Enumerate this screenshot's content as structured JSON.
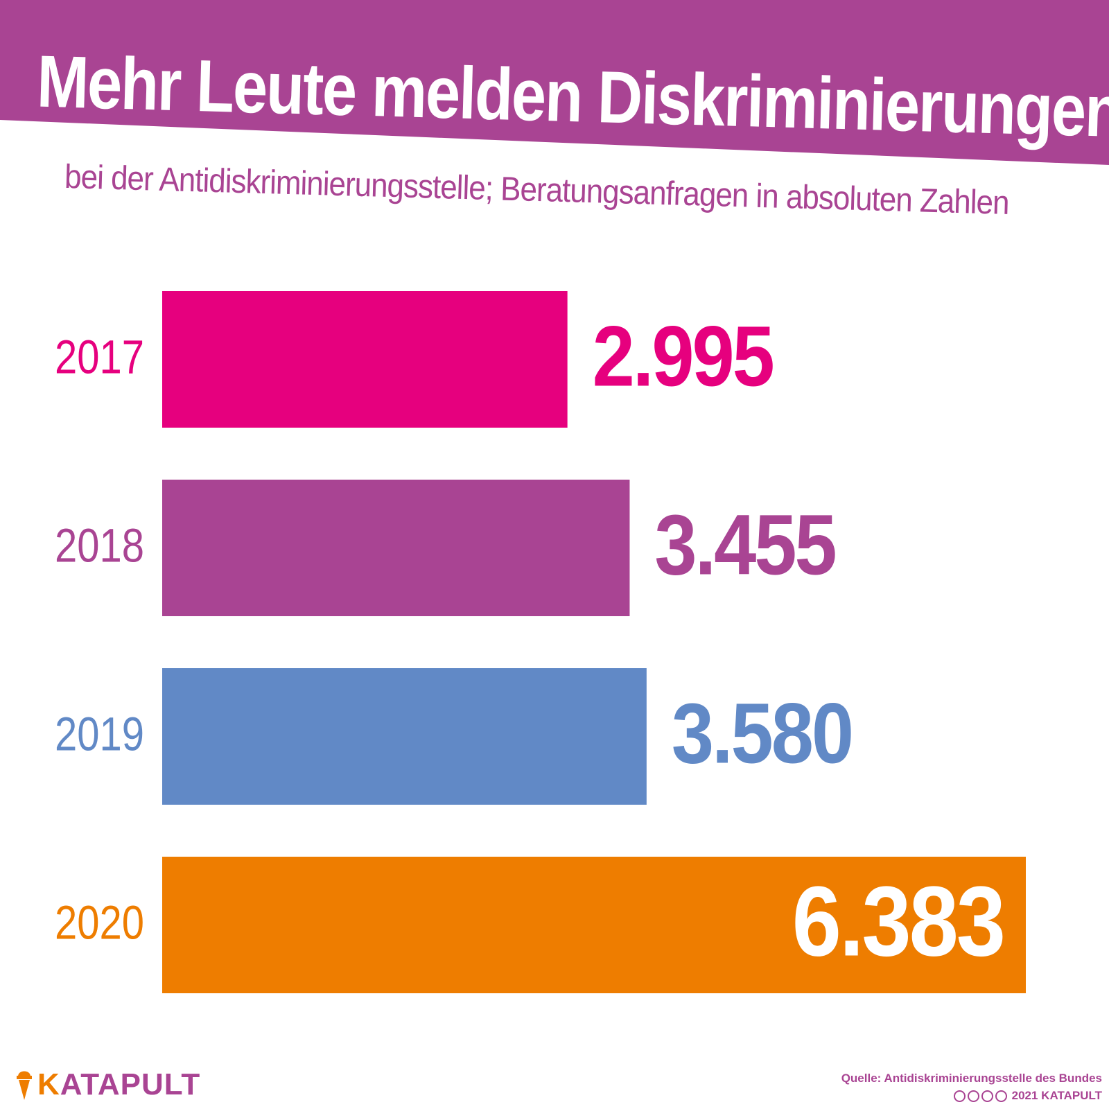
{
  "header": {
    "title": "Mehr Leute melden Diskriminierungen",
    "subtitle": "bei der Antidiskriminierungsstelle; Beratungsanfragen in absoluten Zahlen",
    "band_color": "#a94493"
  },
  "chart_data": {
    "type": "bar",
    "orientation": "horizontal",
    "title": "Mehr Leute melden Diskriminierungen",
    "subtitle": "bei der Antidiskriminierungsstelle; Beratungsanfragen in absoluten Zahlen",
    "categories": [
      "2017",
      "2018",
      "2019",
      "2020"
    ],
    "values": [
      2995,
      3455,
      3580,
      6383
    ],
    "value_labels": [
      "2.995",
      "3.455",
      "3.580",
      "6.383"
    ],
    "colors": [
      "#e6007e",
      "#a94493",
      "#6189c6",
      "#ee7d00"
    ],
    "grid": false,
    "legend": "none"
  },
  "footer": {
    "logo_text": "KATAPULT",
    "logo_colors": {
      "primary": "#a94493",
      "accent": "#ee7d00"
    },
    "source": "Quelle: Antidiskriminierungsstelle des Bundes",
    "credit": "2021 KATAPULT",
    "license_icons": [
      "cc-icon",
      "by-icon",
      "nc-icon",
      "nd-icon"
    ]
  }
}
